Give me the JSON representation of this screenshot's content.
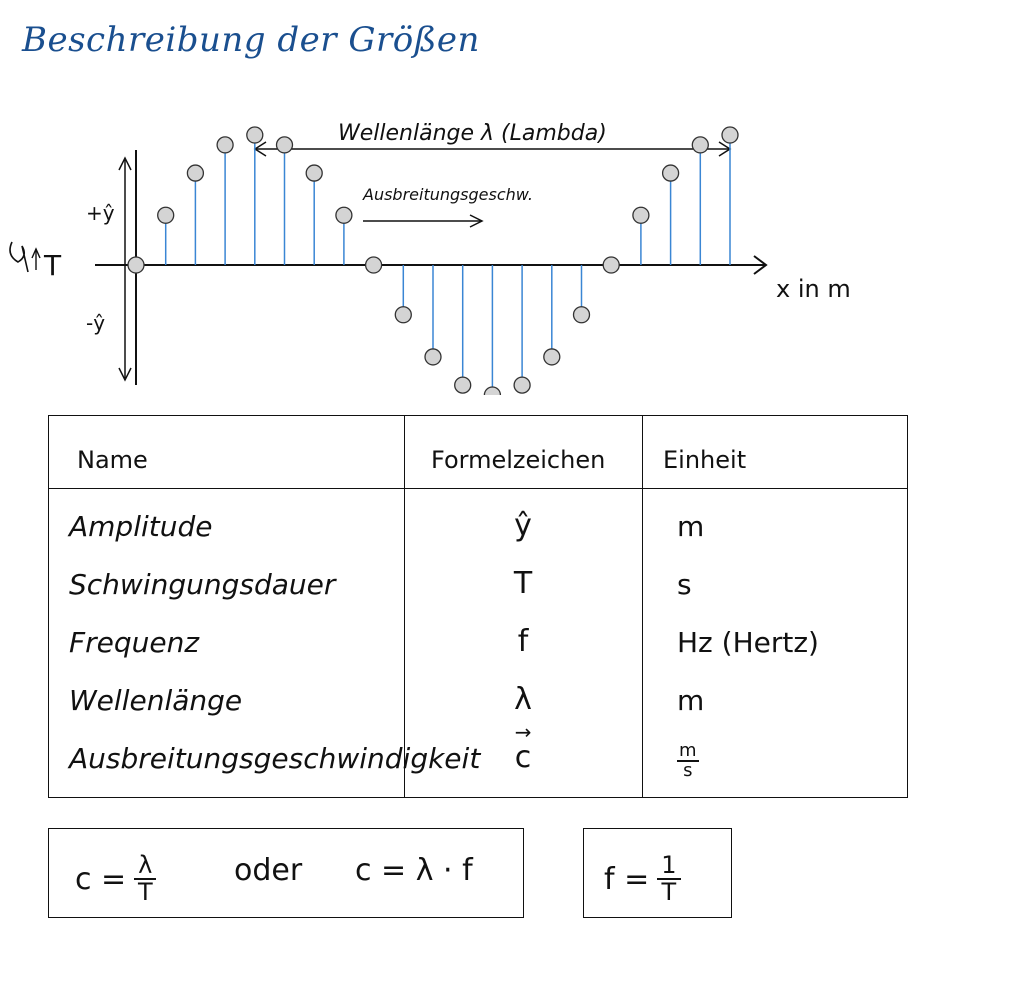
{
  "title": "Beschreibung der Größen",
  "diagram": {
    "wavelength_label": "Wellenlänge  λ (Lambda)",
    "velocity_label": "Ausbreitungsgeschw.",
    "time_label": "T",
    "x_label": "x in m",
    "plus_amp": "+ŷ",
    "minus_amp": "-ŷ",
    "wave_color": "#3a86d4",
    "dot_fill": "#d4d4d4"
  },
  "table": {
    "headers": [
      "Name",
      "Formelzeichen",
      "Einheit"
    ],
    "rows": [
      {
        "name": "Amplitude",
        "symbol": "ŷ",
        "unit": "m"
      },
      {
        "name": "Schwingungsdauer",
        "symbol": "T",
        "unit": "s"
      },
      {
        "name": "Frequenz",
        "symbol": "f",
        "unit": "Hz (Hertz)"
      },
      {
        "name": "Wellenlänge",
        "symbol": "λ",
        "unit": "m"
      },
      {
        "name": "Ausbreitungsgeschwindigkeit",
        "symbol": "c",
        "unit_num": "m",
        "unit_den": "s"
      }
    ]
  },
  "formulas": {
    "f1_lhs": "c =",
    "f1_num": "λ",
    "f1_den": "T",
    "or": "oder",
    "f2": "c = λ · f",
    "f3_lhs": "f =",
    "f3_num": "1",
    "f3_den": "T"
  }
}
